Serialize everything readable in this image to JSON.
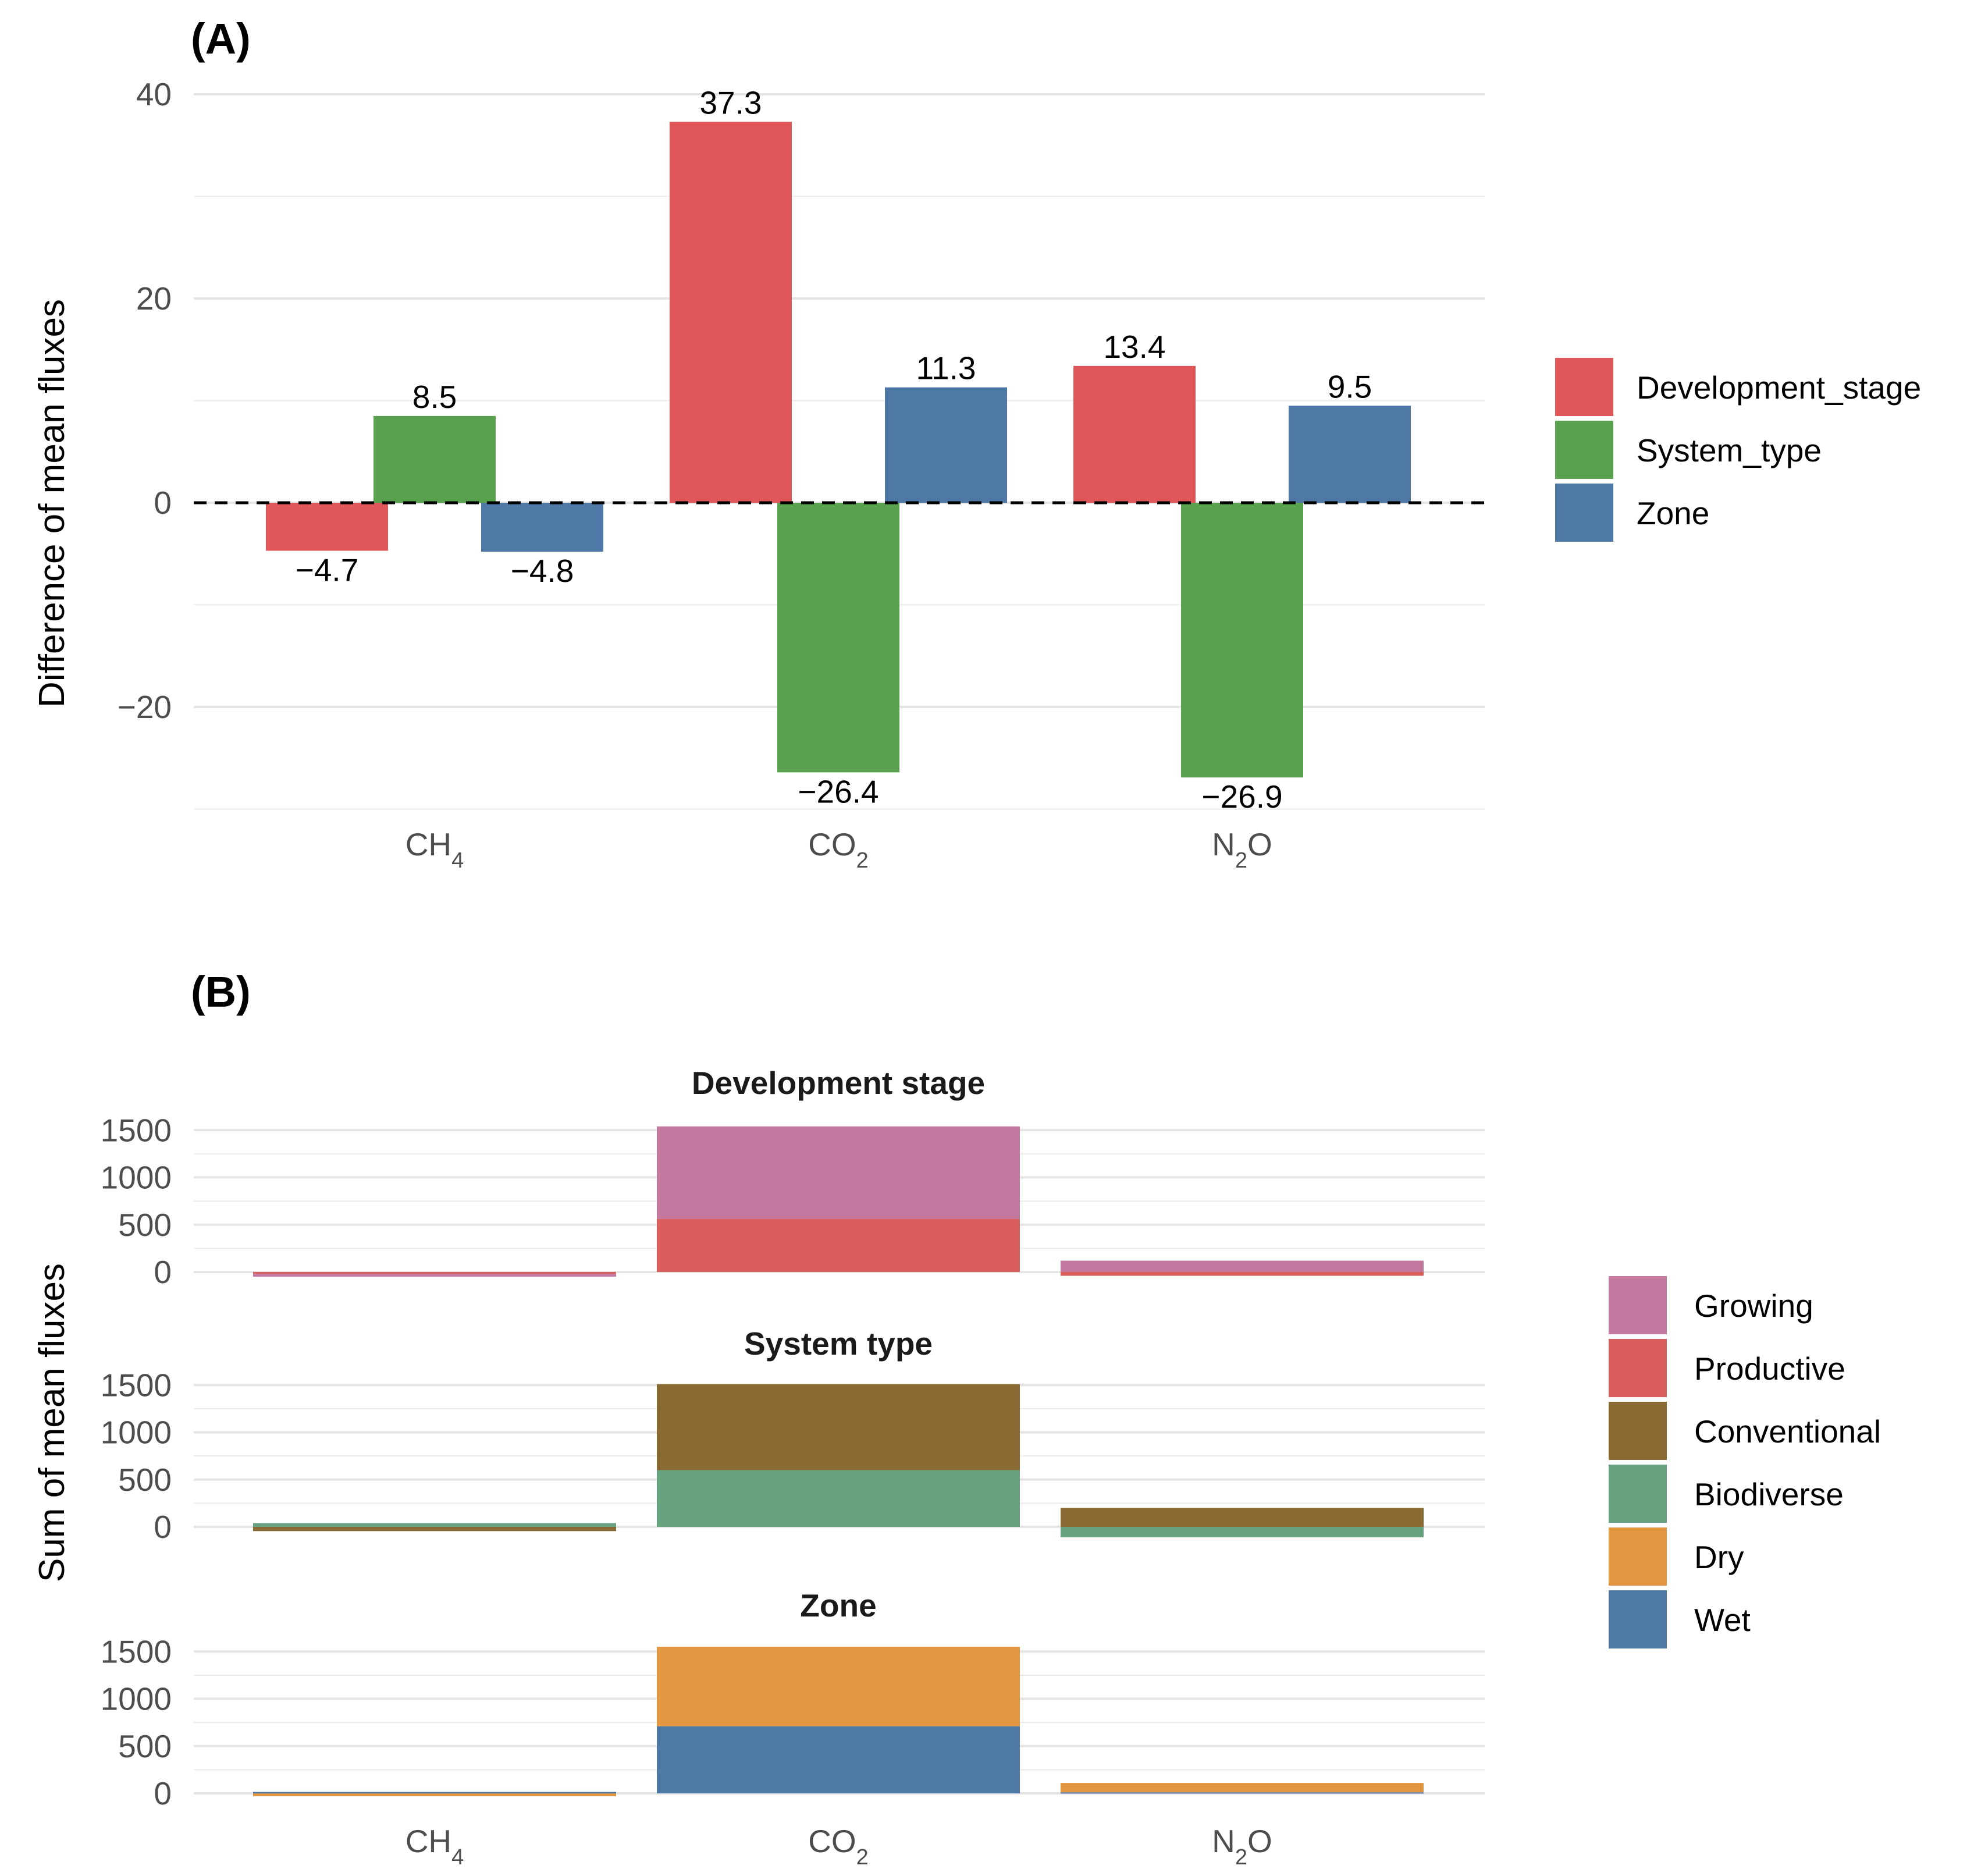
{
  "chart_data": [
    {
      "type": "bar",
      "panel": "(A)",
      "title": "",
      "ylabel": "Difference of mean fluxes",
      "xlabel": "",
      "categories": [
        {
          "base": "CH",
          "sub": "4"
        },
        {
          "base": "CO",
          "sub": "2"
        },
        {
          "base": "N",
          "sub": "2",
          "tail": "O"
        }
      ],
      "series": [
        {
          "name": "Development_stage",
          "color": "#E15759",
          "values": [
            -4.7,
            37.3,
            13.4
          ]
        },
        {
          "name": "System_type",
          "color": "#59A14F",
          "values": [
            8.5,
            -26.4,
            -26.9
          ]
        },
        {
          "name": "Zone",
          "color": "#4E79A7",
          "values": [
            -4.8,
            11.3,
            9.5
          ]
        }
      ],
      "data_labels": [
        [
          "−4.7",
          "37.3",
          "13.4"
        ],
        [
          "8.5",
          "−26.4",
          "−26.9"
        ],
        [
          "−4.8",
          "11.3",
          "9.5"
        ]
      ],
      "ylim": [
        -30,
        40
      ],
      "yticks": [
        -20,
        0,
        20,
        40
      ],
      "ytick_labels": [
        "−20",
        "0",
        "20",
        "40"
      ],
      "reference_line": 0,
      "legend_position": "right"
    },
    {
      "type": "stacked-bar",
      "panel": "(B)",
      "ylabel": "Sum of mean fluxes",
      "categories": [
        {
          "base": "CH",
          "sub": "4"
        },
        {
          "base": "CO",
          "sub": "2"
        },
        {
          "base": "N",
          "sub": "2",
          "tail": "O"
        }
      ],
      "ylim": [
        -150,
        1650
      ],
      "yticks": [
        0,
        500,
        1000,
        1500
      ],
      "ytick_labels": [
        "0",
        "500",
        "1000",
        "1500"
      ],
      "facets": [
        {
          "title": "Development stage",
          "series": [
            {
              "name": "Productive",
              "color": "#DA5F5C",
              "values": [
                -20,
                560,
                -40
              ]
            },
            {
              "name": "Growing",
              "color": "#C5789F",
              "values": [
                -30,
                980,
                120
              ]
            }
          ]
        },
        {
          "title": "System type",
          "series": [
            {
              "name": "Biodiverse",
              "color": "#68A37F",
              "values": [
                40,
                600,
                -110
              ]
            },
            {
              "name": "Conventional",
              "color": "#896A33",
              "values": [
                -45,
                910,
                200
              ]
            }
          ]
        },
        {
          "title": "Zone",
          "series": [
            {
              "name": "Wet",
              "color": "#4E79A7",
              "values": [
                15,
                710,
                10
              ]
            },
            {
              "name": "Dry",
              "color": "#E39640",
              "values": [
                -30,
                840,
                100
              ]
            }
          ]
        }
      ],
      "legend": [
        {
          "name": "Growing",
          "color": "#C5789F"
        },
        {
          "name": "Productive",
          "color": "#DA5F5C"
        },
        {
          "name": "Conventional",
          "color": "#896A33"
        },
        {
          "name": "Biodiverse",
          "color": "#68A37F"
        },
        {
          "name": "Dry",
          "color": "#E39640"
        },
        {
          "name": "Wet",
          "color": "#4E79A7"
        }
      ],
      "legend_position": "right"
    }
  ]
}
